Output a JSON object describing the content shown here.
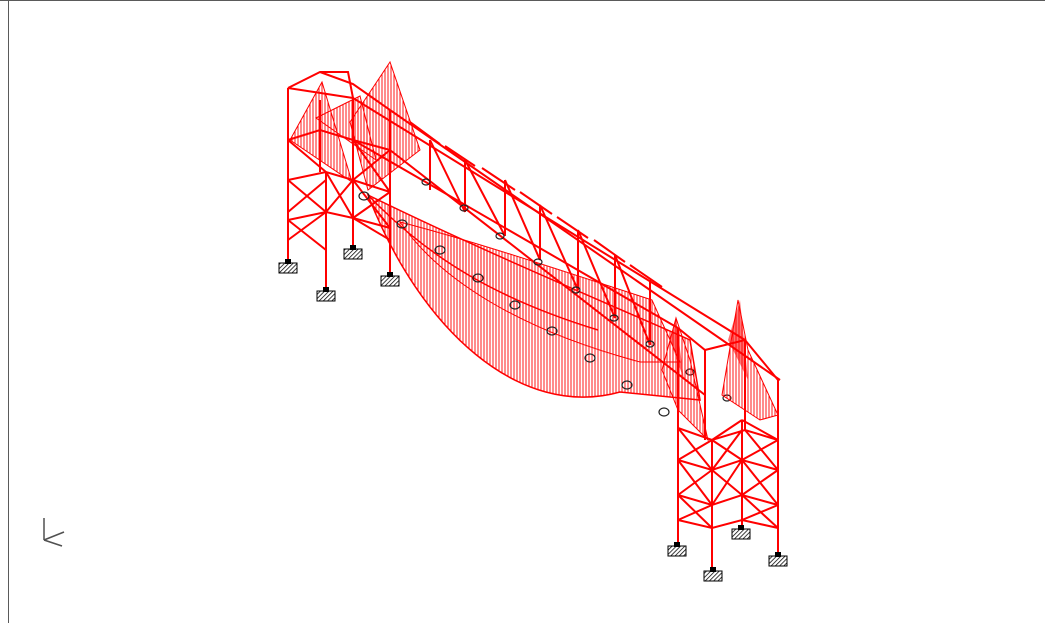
{
  "viewport": {
    "background": "#ffffff",
    "frame_color": "#5a5a5a"
  },
  "model": {
    "member_color": "#ff0000",
    "diagram_fill": "#ff2020",
    "support_icon": "fixed-support-icon",
    "node_icon": "cable-node-icon",
    "axis_icon": "axis-triad-icon"
  }
}
